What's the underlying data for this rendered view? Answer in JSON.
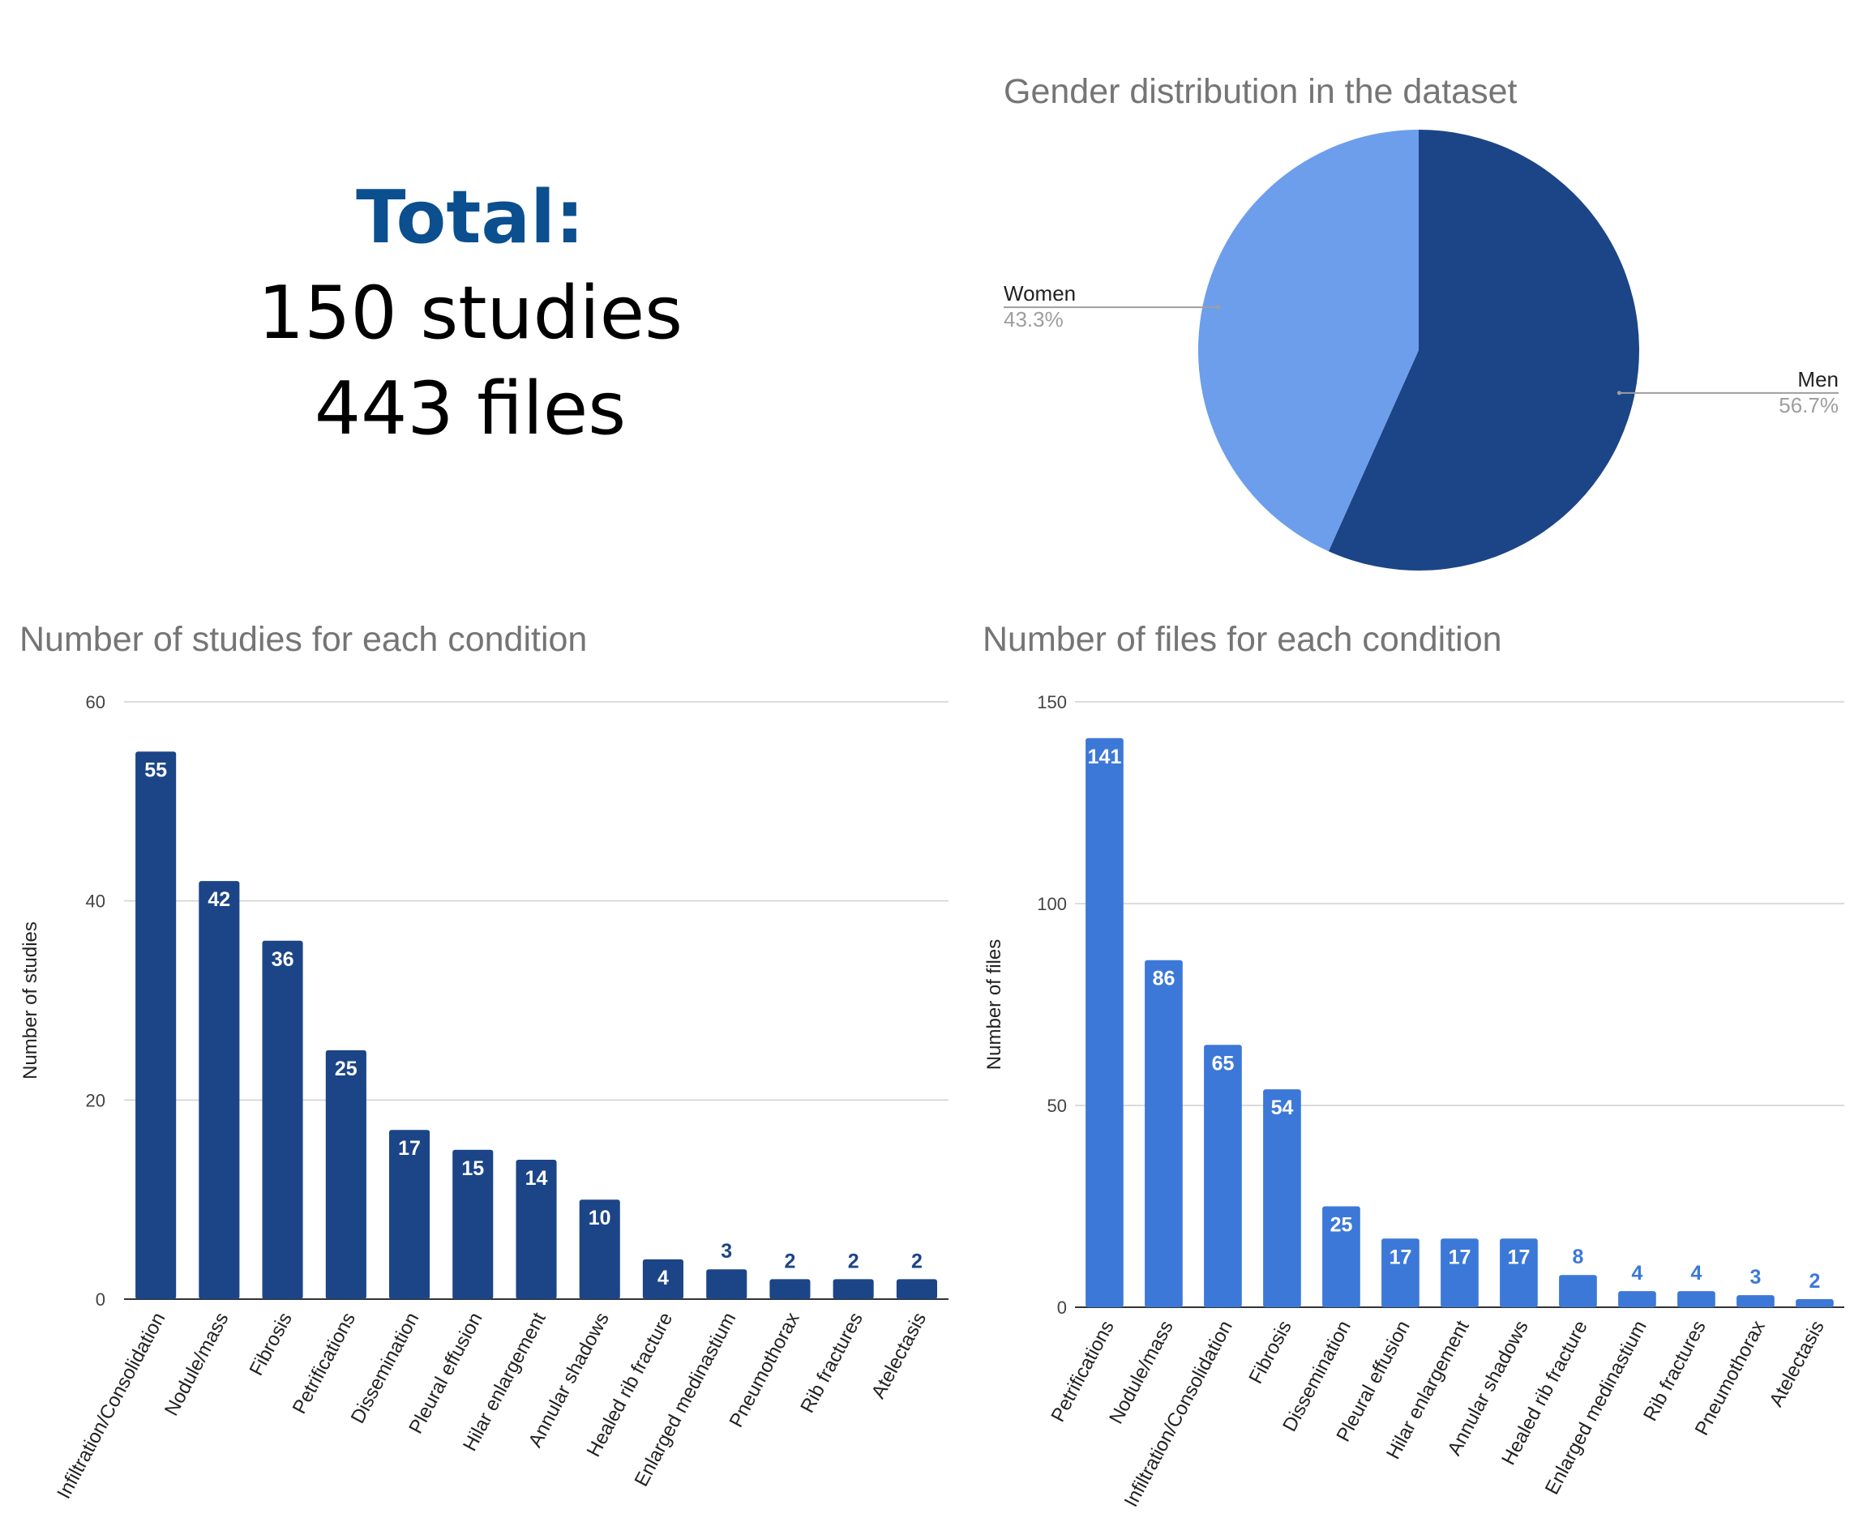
{
  "summary": {
    "total_label": "Total:",
    "studies": "150 studies",
    "files": "443 files"
  },
  "colors": {
    "dark_blue": "#1c4587",
    "mid_blue": "#3c78d8",
    "light_blue": "#6d9eeb",
    "total_text": "#0b4f8f"
  },
  "chart_data": [
    {
      "type": "pie",
      "title": "Gender distribution in the dataset",
      "slices": [
        {
          "label": "Men",
          "percent_label": "56.7%",
          "value": 56.7,
          "color": "#1c4587"
        },
        {
          "label": "Women",
          "percent_label": "43.3%",
          "value": 43.3,
          "color": "#6d9eeb"
        }
      ]
    },
    {
      "type": "bar",
      "title": "Number of studies for each condition",
      "xlabel": "",
      "ylabel": "Number of studies",
      "ylim": [
        0,
        60
      ],
      "yticks": [
        0,
        20,
        40,
        60
      ],
      "grid": true,
      "color": "#1c4587",
      "categories": [
        "Infiltration/Consolidation",
        "Nodule/mass",
        "Fibrosis",
        "Petrifications",
        "Dissemination",
        "Pleural effusion",
        "Hilar enlargement",
        "Annular shadows",
        "Healed rib fracture",
        "Enlarged medinastium",
        "Pneumothorax",
        "Rib fractures",
        "Atelectasis"
      ],
      "values": [
        55,
        42,
        36,
        25,
        17,
        15,
        14,
        10,
        4,
        3,
        2,
        2,
        2
      ]
    },
    {
      "type": "bar",
      "title": "Number of files for each condition",
      "xlabel": "",
      "ylabel": "Number of files",
      "ylim": [
        0,
        150
      ],
      "yticks": [
        0,
        50,
        100,
        150
      ],
      "grid": true,
      "color": "#3c78d8",
      "categories": [
        "Petrifications",
        "Nodule/mass",
        "Infiltration/Consolidation",
        "Fibrosis",
        "Dissemination",
        "Pleural effusion",
        "Hilar enlargement",
        "Annular shadows",
        "Healed rib fracture",
        "Enlarged medinastium",
        "Rib fractures",
        "Pneumothorax",
        "Atelectasis"
      ],
      "values": [
        141,
        86,
        65,
        54,
        25,
        17,
        17,
        17,
        8,
        4,
        4,
        3,
        2
      ]
    }
  ]
}
